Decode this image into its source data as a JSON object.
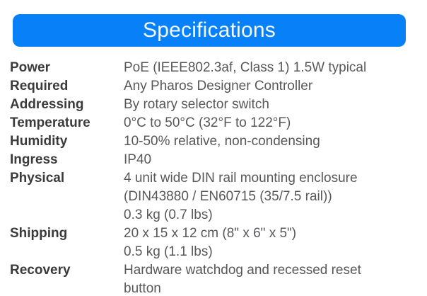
{
  "header": {
    "title": "Specifications"
  },
  "colors": {
    "header_bg": "#0780f8",
    "header_text": "#f2f9ff",
    "label": "#3b3b3b",
    "value": "#58585a",
    "background": "#ffffff"
  },
  "specs": [
    {
      "label": "Power",
      "lines": [
        "PoE (IEEE802.3af, Class 1) 1.5W typical"
      ]
    },
    {
      "label": "Required",
      "lines": [
        "Any Pharos Designer Controller"
      ]
    },
    {
      "label": "Addressing",
      "lines": [
        "By rotary selector switch"
      ]
    },
    {
      "label": "Temperature",
      "lines": [
        "0°C to 50°C (32°F to 122°F)"
      ]
    },
    {
      "label": "Humidity",
      "lines": [
        "10-50% relative, non-condensing"
      ]
    },
    {
      "label": "Ingress",
      "lines": [
        "IP40"
      ]
    },
    {
      "label": "Physical",
      "lines": [
        "4 unit wide DIN rail mounting enclosure",
        "(DIN43880 / EN60715 (35/7.5 rail))",
        "0.3 kg (0.7 lbs)"
      ]
    },
    {
      "label": "Shipping",
      "lines": [
        "20 x 15 x 12 cm (8\" x 6\" x 5\")",
        "0.5 kg (1.1 lbs)"
      ]
    },
    {
      "label": "Recovery",
      "lines": [
        "Hardware watchdog and recessed reset",
        "button"
      ]
    }
  ]
}
